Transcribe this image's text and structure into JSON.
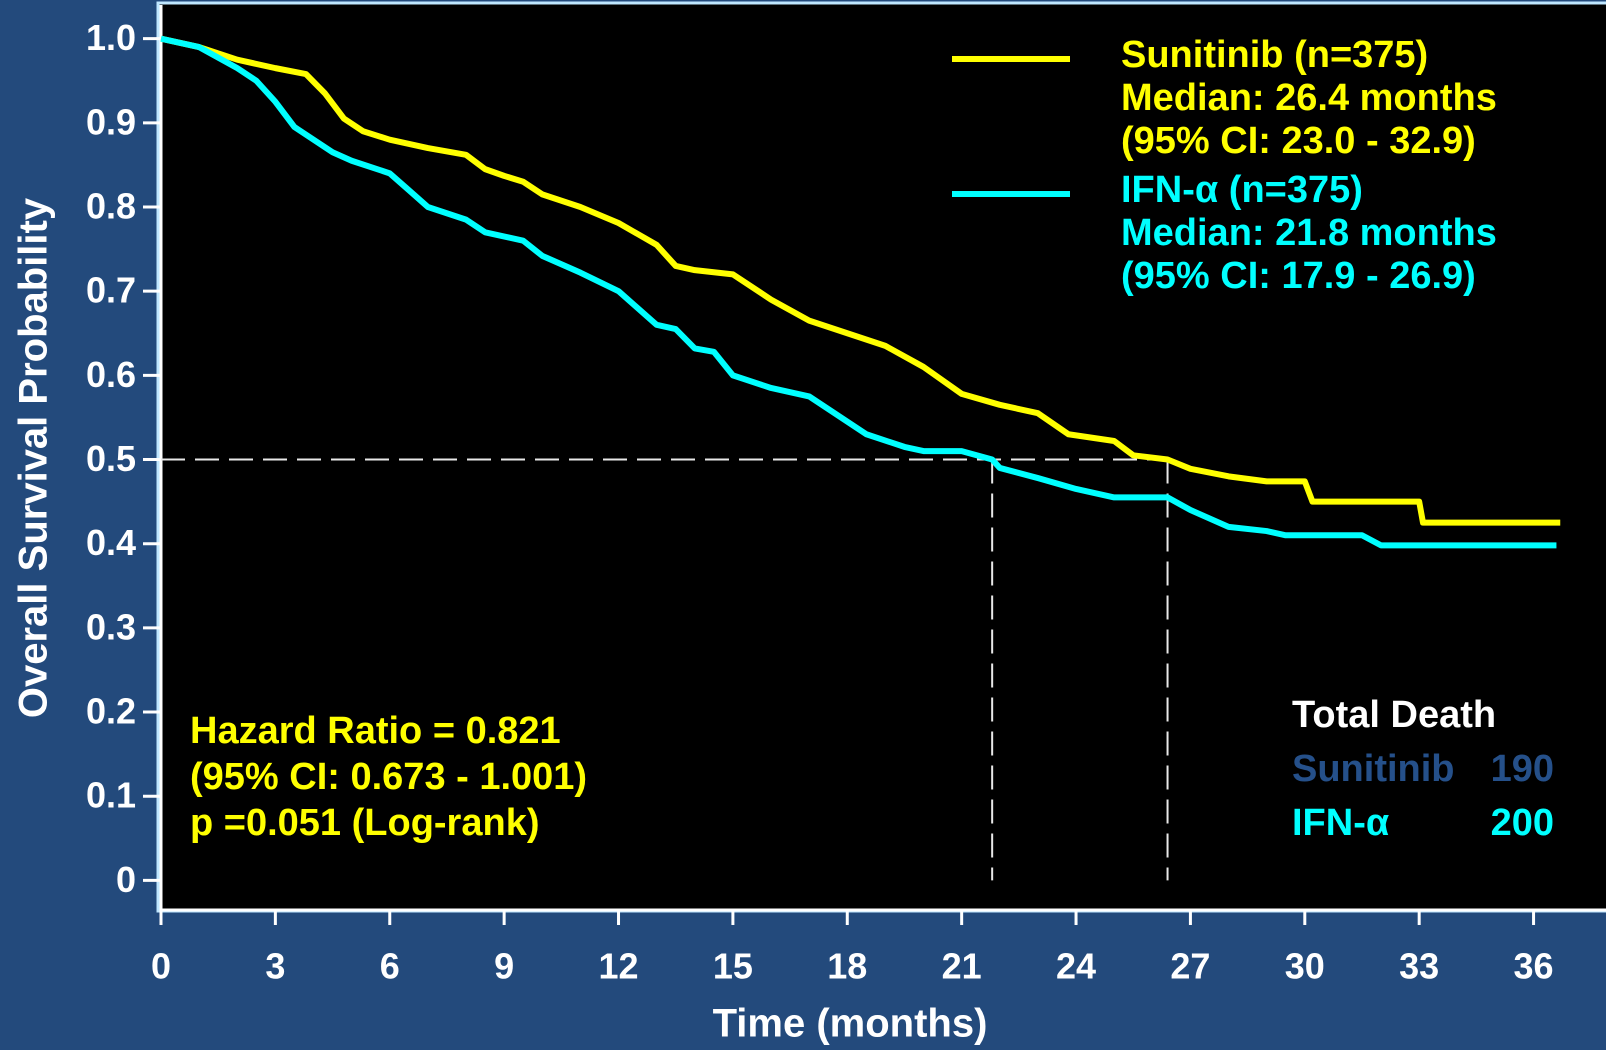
{
  "chart_data": {
    "type": "line",
    "xlabel": "Time (months)",
    "ylabel": "Overall Survival Probability",
    "xlim": [
      0,
      37.9
    ],
    "ylim": [
      -0.034,
      1.04
    ],
    "xticks": [
      0,
      3,
      6,
      9,
      12,
      15,
      18,
      21,
      24,
      27,
      30,
      33,
      36
    ],
    "yticks": [
      0,
      0.1,
      0.2,
      0.3,
      0.4,
      0.5,
      0.6,
      0.7,
      0.8,
      0.9,
      {
        "value": 1,
        "label": "1.0"
      }
    ],
    "median_y": 0.5,
    "median_x": [
      21.8,
      26.4
    ],
    "series": [
      {
        "name": "Sunitinib (n=375)",
        "median_label": "Median: 26.4 months",
        "ci_label": "(95% CI: 23.0 - 32.9)",
        "color": "#ffff00",
        "x": [
          0,
          1,
          2,
          3,
          3.8,
          4.3,
          4.8,
          5.3,
          6,
          7,
          8,
          8.5,
          9,
          9.5,
          10,
          11,
          12,
          13,
          13.5,
          14,
          15,
          16,
          17,
          18,
          19,
          20,
          21,
          22,
          23,
          23.8,
          25,
          25.5,
          26.4,
          27,
          28,
          29,
          30,
          30.2,
          33,
          33.1,
          36.7
        ],
        "values": [
          1.0,
          0.99,
          0.975,
          0.965,
          0.958,
          0.935,
          0.905,
          0.89,
          0.88,
          0.87,
          0.862,
          0.845,
          0.837,
          0.83,
          0.815,
          0.8,
          0.781,
          0.755,
          0.73,
          0.725,
          0.72,
          0.69,
          0.665,
          0.65,
          0.635,
          0.61,
          0.578,
          0.565,
          0.555,
          0.53,
          0.522,
          0.505,
          0.5,
          0.489,
          0.48,
          0.474,
          0.474,
          0.45,
          0.45,
          0.425,
          0.425
        ]
      },
      {
        "name": "IFN-α (n=375)",
        "median_label": "Median: 21.8 months",
        "ci_label": "(95% CI: 17.9 - 26.9)",
        "color": "#00ffff",
        "x": [
          0,
          1,
          2,
          2.5,
          3,
          3.5,
          4.5,
          5,
          6,
          6.5,
          7,
          8,
          8.5,
          9.5,
          10,
          11,
          12,
          12.5,
          13,
          13.5,
          14,
          14.5,
          15,
          16,
          17,
          18,
          18.5,
          19.5,
          20,
          21,
          21.8,
          22,
          23,
          24,
          25,
          26.4,
          27,
          28,
          29,
          29.5,
          31.5,
          32,
          36.6
        ],
        "values": [
          1.0,
          0.99,
          0.965,
          0.95,
          0.925,
          0.895,
          0.865,
          0.855,
          0.84,
          0.82,
          0.8,
          0.785,
          0.77,
          0.76,
          0.742,
          0.722,
          0.7,
          0.68,
          0.66,
          0.655,
          0.632,
          0.628,
          0.6,
          0.585,
          0.575,
          0.545,
          0.53,
          0.515,
          0.51,
          0.51,
          0.5,
          0.49,
          0.478,
          0.465,
          0.455,
          0.455,
          0.44,
          0.42,
          0.415,
          0.41,
          0.41,
          0.398,
          0.398
        ]
      }
    ],
    "stats": [
      "Hazard Ratio = 0.821",
      "(95% CI: 0.673 - 1.001)",
      "p =0.051 (Log-rank)"
    ],
    "deaths": {
      "title": "Total Death",
      "rows": [
        {
          "name": "Sunitinib",
          "value": 190,
          "color": "#25508a"
        },
        {
          "name": "IFN-α",
          "value": 200,
          "color": "#00ffff"
        }
      ]
    }
  }
}
